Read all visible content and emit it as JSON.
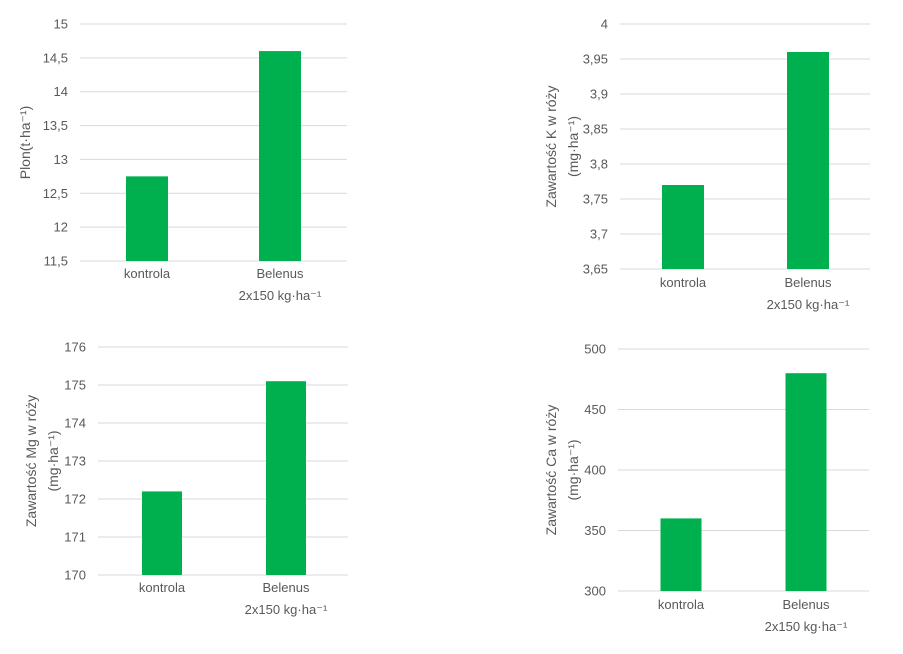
{
  "colors": {
    "bar": "#00b04f",
    "grid": "#d9d9d9",
    "text": "#595959"
  },
  "chart_data": [
    {
      "type": "bar",
      "categories": [
        [
          "kontrola"
        ],
        [
          "Belenus",
          "2x150 kg·ha⁻¹"
        ]
      ],
      "values": [
        12.75,
        14.6
      ],
      "ylabel": [
        "Plon(t·ha⁻¹)"
      ],
      "ylim": [
        11.5,
        15
      ],
      "yticks": [
        "11,5",
        "12",
        "12,5",
        "13",
        "13,5",
        "14",
        "14,5",
        "15"
      ],
      "grid": true
    },
    {
      "type": "bar",
      "categories": [
        [
          "kontrola"
        ],
        [
          "Belenus",
          "2x150 kg·ha⁻¹"
        ]
      ],
      "values": [
        3.77,
        3.96
      ],
      "ylabel": [
        "Zawartość K w róży",
        "(mg·ha⁻¹)"
      ],
      "ylim": [
        3.65,
        4
      ],
      "yticks": [
        "3,65",
        "3,7",
        "3,75",
        "3,8",
        "3,85",
        "3,9",
        "3,95",
        "4"
      ],
      "grid": true
    },
    {
      "type": "bar",
      "categories": [
        [
          "kontrola"
        ],
        [
          "Belenus",
          "2x150 kg·ha⁻¹"
        ]
      ],
      "values": [
        172.2,
        175.1
      ],
      "ylabel": [
        "Zawartość Mg w róży",
        "(mg·ha⁻¹)"
      ],
      "ylim": [
        170,
        176
      ],
      "yticks": [
        "170",
        "171",
        "172",
        "173",
        "174",
        "175",
        "176"
      ],
      "grid": true
    },
    {
      "type": "bar",
      "categories": [
        [
          "kontrola"
        ],
        [
          "Belenus",
          "2x150 kg·ha⁻¹"
        ]
      ],
      "values": [
        360,
        480
      ],
      "ylabel": [
        "Zawartość Ca w róży",
        "(mg·ha⁻¹)"
      ],
      "ylim": [
        300,
        500
      ],
      "yticks": [
        "300",
        "350",
        "400",
        "450",
        "500"
      ],
      "grid": true
    }
  ]
}
